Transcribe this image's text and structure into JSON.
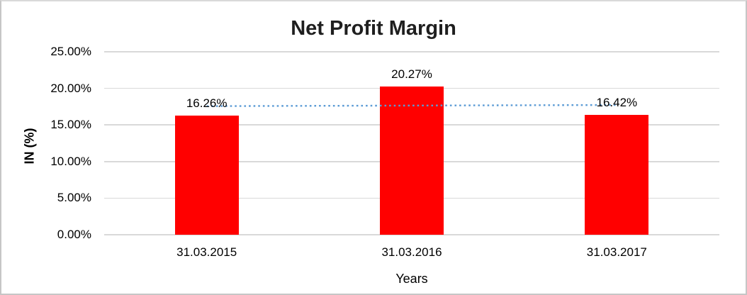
{
  "chart_data": {
    "type": "bar",
    "title": "Net Profit Margin",
    "categories": [
      "31.03.2015",
      "31.03.2016",
      "31.03.2017"
    ],
    "series": [
      {
        "name": "Net Profit Margin",
        "values": [
          16.26,
          20.27,
          16.42
        ]
      }
    ],
    "data_labels": [
      "16.26%",
      "20.27%",
      "16.42%"
    ],
    "xlabel": "Years",
    "ylabel": "IN (%)",
    "ylim": [
      0,
      25
    ],
    "yticks": [
      0,
      5,
      10,
      15,
      20,
      25
    ],
    "ytick_labels": [
      "0.00%",
      "5.00%",
      "10.00%",
      "15.00%",
      "20.00%",
      "25.00%"
    ],
    "grid": true,
    "legend": "none",
    "colors": {
      "bar": "#FF0000",
      "trendline": "#5B9BD5",
      "gridline": "#D9D9D9",
      "title_text": "#1F1F1F",
      "label_text": "#000000"
    },
    "trendline": {
      "type": "linear",
      "style": "dotted",
      "values": [
        17.57,
        17.65,
        17.73
      ]
    }
  }
}
